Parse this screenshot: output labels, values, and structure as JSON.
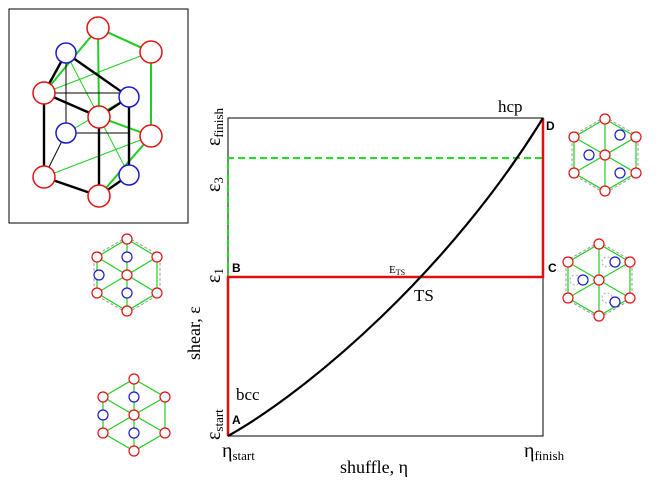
{
  "diagram": {
    "axes": {
      "x_label": "shuffle, η",
      "y_label": "shear, ε",
      "x_ticks": [
        {
          "main": "η",
          "sub": "start"
        },
        {
          "main": "η",
          "sub": "finish"
        }
      ],
      "y_ticks": [
        {
          "main": "ε",
          "sub": "start"
        },
        {
          "main": "ε",
          "sub": "1"
        },
        {
          "main": "ε",
          "sub": "3"
        },
        {
          "main": "ε",
          "sub": "finish"
        }
      ]
    },
    "points": {
      "A": "A",
      "B": "B",
      "C": "C",
      "D": "D"
    },
    "labels": {
      "bcc": "bcc",
      "hcp": "hcp",
      "ts": "TS",
      "ets_main": "E",
      "ets_sub": "TS"
    },
    "colors": {
      "path_red": "#e01010",
      "path_green_dashed": "#22dd22",
      "curve": "#000000",
      "atom_red": "#e01010",
      "atom_blue": "#1a1acc",
      "bond_green": "#22cc22"
    }
  }
}
